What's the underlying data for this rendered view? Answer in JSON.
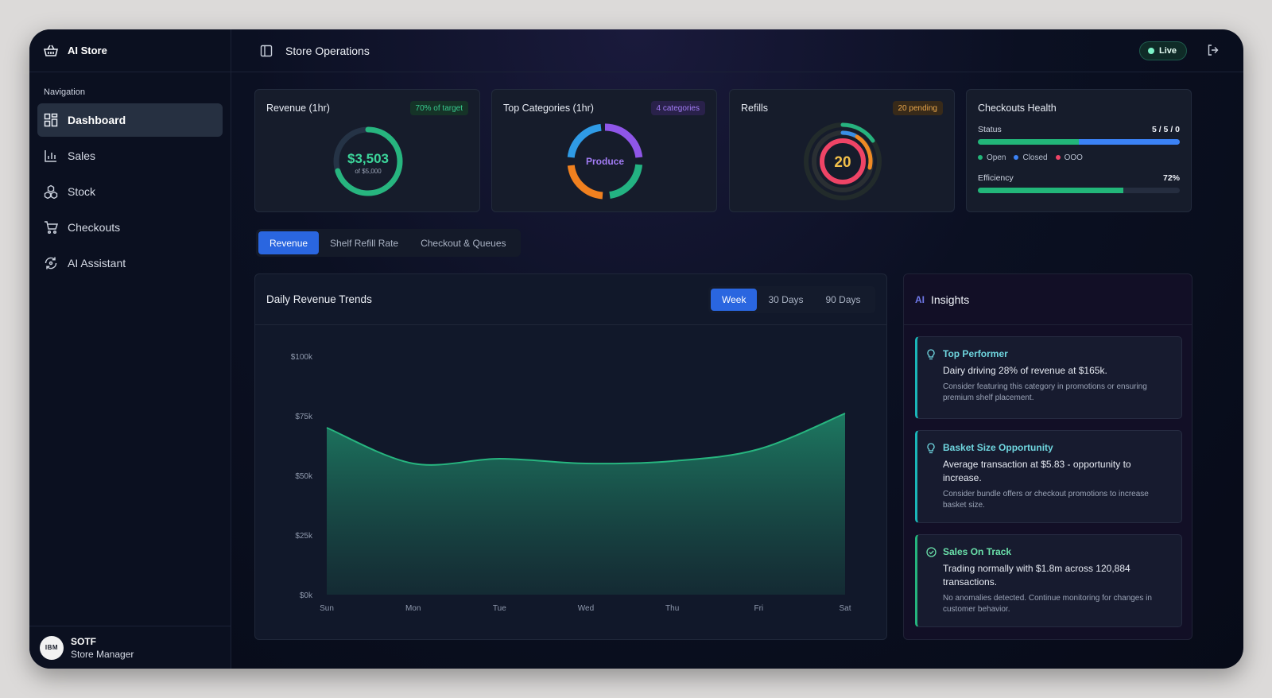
{
  "app": {
    "name": "AI Store"
  },
  "sidebar": {
    "heading": "Navigation",
    "items": [
      {
        "label": "Dashboard",
        "icon": "dashboard-icon",
        "active": true
      },
      {
        "label": "Sales",
        "icon": "bar-chart-icon"
      },
      {
        "label": "Stock",
        "icon": "boxes-icon"
      },
      {
        "label": "Checkouts",
        "icon": "cart-icon"
      },
      {
        "label": "AI Assistant",
        "icon": "refresh-icon"
      }
    ],
    "user": {
      "avatar_text": "IBM",
      "name": "SOTF",
      "role": "Store Manager"
    }
  },
  "topbar": {
    "title": "Store Operations",
    "status": "Live"
  },
  "cards": {
    "revenue": {
      "title": "Revenue (1hr)",
      "badge": "70% of target",
      "value": "$3,503",
      "sub": "of $5,000",
      "progress": 0.7,
      "color": "#27b57f"
    },
    "categories": {
      "title": "Top Categories (1hr)",
      "badge": "4 categories",
      "center": "Produce"
    },
    "refills": {
      "title": "Refills",
      "badge": "20 pending",
      "value": "20"
    },
    "checkouts": {
      "title": "Checkouts Health",
      "status_label": "Status",
      "status_value": "5 / 5 / 0",
      "open_fraction": 0.5,
      "closed_fraction": 0.5,
      "legend": [
        "Open",
        "Closed",
        "OOO"
      ],
      "legend_colors": [
        "#22b679",
        "#3b82f6",
        "#ef4466"
      ],
      "efficiency_label": "Efficiency",
      "efficiency_value": "72%",
      "efficiency": 0.72
    }
  },
  "tabs": [
    "Revenue",
    "Shelf Refill Rate",
    "Checkout & Queues"
  ],
  "chart": {
    "title": "Daily Revenue Trends",
    "ranges": [
      "Week",
      "30 Days",
      "90 Days"
    ]
  },
  "chart_data": {
    "type": "area",
    "categories": [
      "Sun",
      "Mon",
      "Tue",
      "Wed",
      "Thu",
      "Fri",
      "Sat"
    ],
    "values": [
      70000,
      55000,
      57000,
      55000,
      56000,
      61000,
      76000
    ],
    "ylim": [
      0,
      100000
    ],
    "yticks": [
      "$0k",
      "$25k",
      "$50k",
      "$75k",
      "$100k"
    ],
    "color": "#27b57f"
  },
  "insights": {
    "ai_label": "AI",
    "title": "Insights",
    "items": [
      {
        "title": "Top Performer",
        "body": "Dairy driving 28% of revenue at $165k.",
        "sub": "Consider featuring this category in promotions or ensuring premium shelf placement.",
        "icon": "lightbulb-icon"
      },
      {
        "title": "Basket Size Opportunity",
        "body": "Average transaction at $5.83 - opportunity to increase.",
        "sub": "Consider bundle offers or checkout promotions to increase basket size.",
        "icon": "lightbulb-icon"
      },
      {
        "title": "Sales On Track",
        "body": "Trading normally with $1.8m across 120,884 transactions.",
        "sub": "No anomalies detected. Continue monitoring for changes in customer behavior.",
        "icon": "check-circle-icon"
      }
    ]
  }
}
